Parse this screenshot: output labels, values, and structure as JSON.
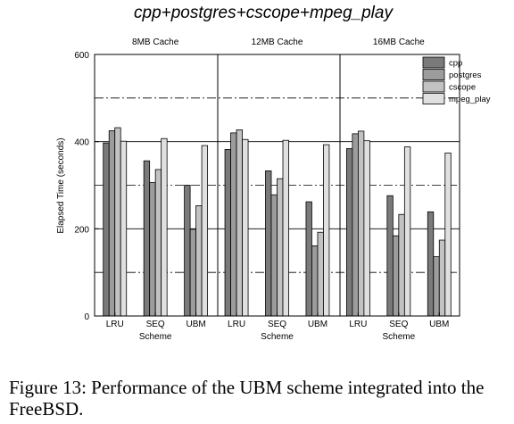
{
  "title": "cpp+postgres+cscope+mpeg_play",
  "caption": "Figure 13: Performance of the UBM scheme integrated into the FreeBSD.",
  "chart_data": {
    "type": "bar",
    "ylabel": "Elapsed Time (seconds)",
    "xlabel": "Scheme",
    "ylim": [
      0,
      600
    ],
    "yticks": [
      0,
      200,
      400,
      600
    ],
    "grid_dashed_at": [
      100,
      300,
      500
    ],
    "grid_solid_at": [
      200,
      400
    ],
    "legend_position": "top-right",
    "series": [
      {
        "name": "cpp",
        "color": "#7a7a7a"
      },
      {
        "name": "postgres",
        "color": "#9c9c9c"
      },
      {
        "name": "cscope",
        "color": "#c2c2c2"
      },
      {
        "name": "mpeg_play",
        "color": "#e0e0e0"
      }
    ],
    "panels": [
      {
        "title": "8MB Cache",
        "categories": [
          "LRU",
          "SEQ",
          "UBM"
        ],
        "values": [
          [
            397,
            425,
            432,
            401
          ],
          [
            356,
            306,
            336,
            407
          ],
          [
            300,
            199,
            253,
            391
          ]
        ]
      },
      {
        "title": "12MB Cache",
        "categories": [
          "LRU",
          "SEQ",
          "UBM"
        ],
        "values": [
          [
            382,
            420,
            427,
            405
          ],
          [
            333,
            278,
            315,
            403
          ],
          [
            262,
            161,
            192,
            393
          ]
        ]
      },
      {
        "title": "16MB Cache",
        "categories": [
          "LRU",
          "SEQ",
          "UBM"
        ],
        "values": [
          [
            384,
            418,
            424,
            402
          ],
          [
            276,
            184,
            233,
            388
          ],
          [
            239,
            136,
            174,
            374
          ]
        ]
      }
    ]
  }
}
